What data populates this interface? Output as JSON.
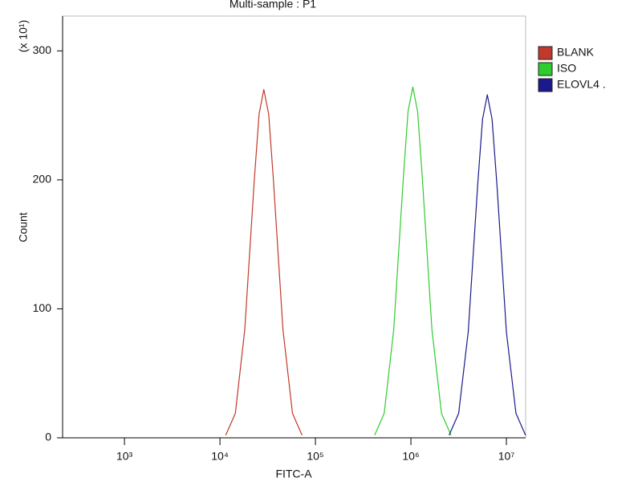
{
  "chart_data": {
    "type": "line",
    "title": "Multi-sample : P1",
    "x_label": "FITC-A",
    "y_label": "Count",
    "y_multiplier": "(x 10¹)",
    "xscale": "log",
    "xlim": [
      225,
      15900000
    ],
    "ylim": [
      0,
      327
    ],
    "xticks": [
      {
        "value": 1000,
        "label": "10³"
      },
      {
        "value": 10000,
        "label": "10⁴"
      },
      {
        "value": 100000,
        "label": "10⁵"
      },
      {
        "value": 1000000,
        "label": "10⁶"
      },
      {
        "value": 10000000,
        "label": "10⁷"
      }
    ],
    "yticks": [
      0,
      100,
      200,
      300
    ],
    "legend": "right",
    "series": [
      {
        "name": "BLANK",
        "color": "#c0392b",
        "x": [
          11500,
          14500,
          18200,
          22900,
          25700,
          28800,
          32400,
          36300,
          45700,
          57500,
          72400
        ],
        "values": [
          2,
          19,
          84,
          200,
          251,
          270,
          251,
          200,
          84,
          19,
          2
        ]
      },
      {
        "name": "ISO",
        "color": "#2ecc2e",
        "x": [
          417000,
          525000,
          661000,
          832000,
          933000,
          1047000,
          1175000,
          1318000,
          1660000,
          2089000,
          2630000
        ],
        "values": [
          2,
          19,
          84,
          201,
          253,
          272,
          253,
          201,
          84,
          19,
          2
        ]
      },
      {
        "name": "ELOVL4 .",
        "color": "#1a1a8c",
        "x": [
          2512000,
          3162000,
          3981000,
          5012000,
          5623000,
          6310000,
          7079000,
          7943000,
          10000000,
          12590000,
          15850000
        ],
        "values": [
          2,
          19,
          82,
          197,
          247,
          266,
          247,
          197,
          82,
          19,
          2
        ]
      }
    ]
  }
}
